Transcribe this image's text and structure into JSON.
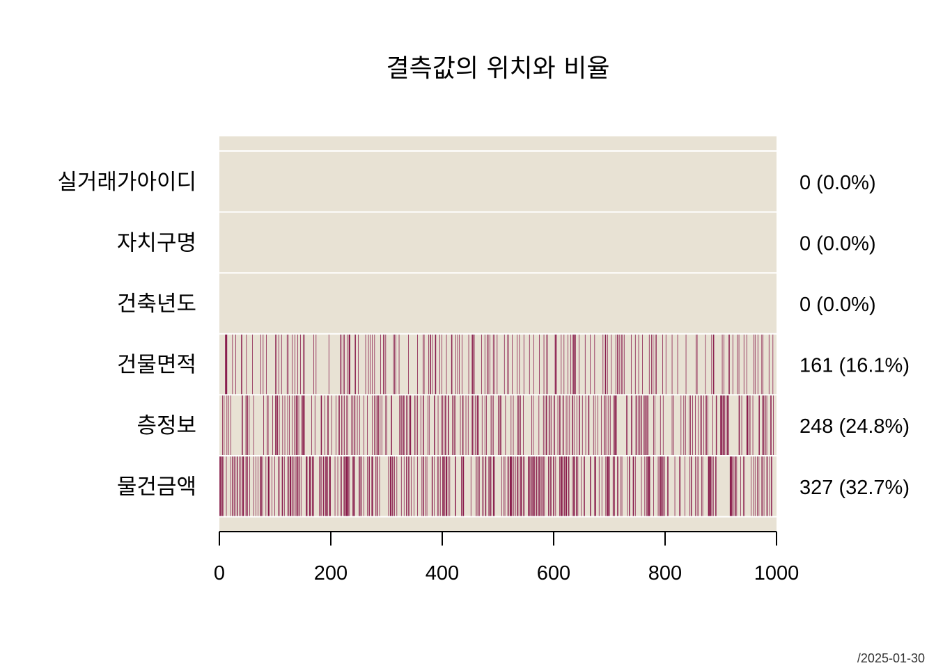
{
  "chart_data": {
    "type": "heatmap",
    "title": "결측값의 위치와 비율",
    "xlabel": "",
    "ylabel": "",
    "xlim": [
      0,
      1000
    ],
    "n_obs": 1000,
    "x_ticks": [
      0,
      200,
      400,
      600,
      800,
      1000
    ],
    "x_tick_labels": [
      "0",
      "200",
      "400",
      "600",
      "800",
      "1000"
    ],
    "grid": false,
    "colors": {
      "background": "#e8e2d4",
      "missing": "#7b0039",
      "separator": "#ffffff"
    },
    "variables": [
      {
        "name": "실거래가아이디",
        "missing_count": 0,
        "missing_pct": 0.0,
        "label": "0 (0.0%)"
      },
      {
        "name": "자치구명",
        "missing_count": 0,
        "missing_pct": 0.0,
        "label": "0 (0.0%)"
      },
      {
        "name": "건축년도",
        "missing_count": 0,
        "missing_pct": 0.0,
        "label": "0 (0.0%)"
      },
      {
        "name": "건물면적",
        "missing_count": 161,
        "missing_pct": 16.1,
        "label": "161 (16.1%)"
      },
      {
        "name": "층정보",
        "missing_count": 248,
        "missing_pct": 24.8,
        "label": "248 (24.8%)"
      },
      {
        "name": "물건금액",
        "missing_count": 327,
        "missing_pct": 32.7,
        "label": "327 (32.7%)"
      }
    ]
  },
  "footer": {
    "caption": "/2025-01-30"
  }
}
